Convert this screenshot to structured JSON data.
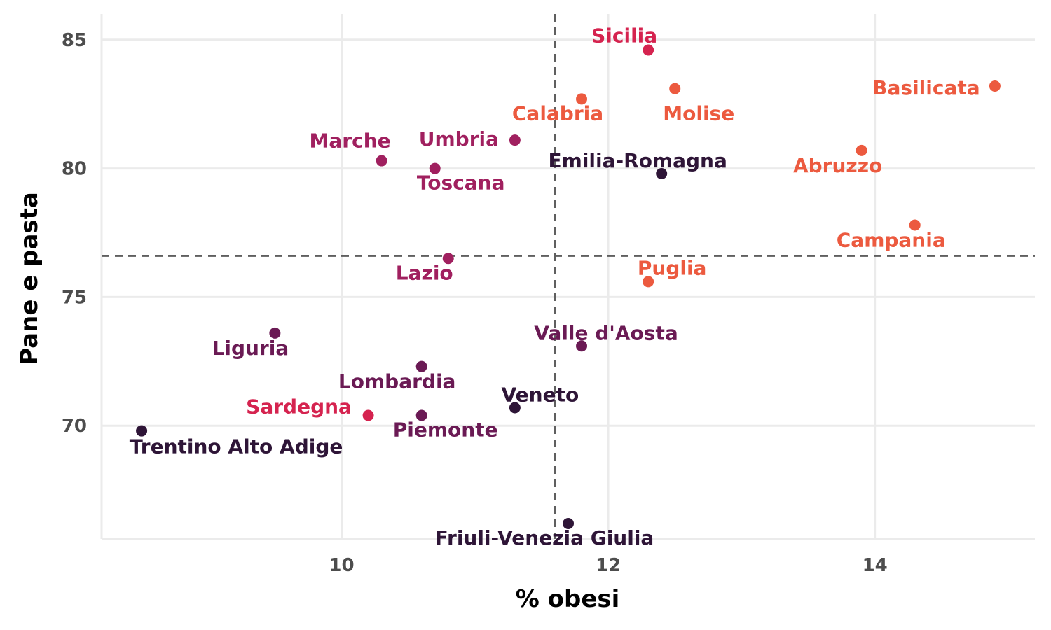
{
  "chart_data": {
    "type": "scatter",
    "xlabel": "% obesi",
    "ylabel": "Pane e pasta",
    "xlim": [
      8.2,
      15.2
    ],
    "ylim": [
      65.6,
      86.0
    ],
    "xticks": [
      10,
      12,
      14
    ],
    "yticks": [
      70,
      75,
      80,
      85
    ],
    "grid": true,
    "reference_lines": {
      "x": 11.6,
      "y": 76.6
    },
    "points": [
      {
        "label": "Sicilia",
        "x": 12.3,
        "y": 84.6,
        "color": "#d5234f"
      },
      {
        "label": "Molise",
        "x": 12.5,
        "y": 83.1,
        "color": "#ec5a3f"
      },
      {
        "label": "Basilicata",
        "x": 14.9,
        "y": 83.2,
        "color": "#ec5a3f"
      },
      {
        "label": "Calabria",
        "x": 11.8,
        "y": 82.7,
        "color": "#ec5a3f"
      },
      {
        "label": "Umbria",
        "x": 11.3,
        "y": 81.1,
        "color": "#a0205f"
      },
      {
        "label": "Marche",
        "x": 10.3,
        "y": 80.3,
        "color": "#a0205f"
      },
      {
        "label": "Toscana",
        "x": 10.7,
        "y": 80.0,
        "color": "#a0205f"
      },
      {
        "label": "Emilia-Romagna",
        "x": 12.4,
        "y": 79.8,
        "color": "#2e1537"
      },
      {
        "label": "Abruzzo",
        "x": 13.9,
        "y": 80.7,
        "color": "#ec5a3f"
      },
      {
        "label": "Campania",
        "x": 14.3,
        "y": 77.8,
        "color": "#ec5a3f"
      },
      {
        "label": "Lazio",
        "x": 10.8,
        "y": 76.5,
        "color": "#a0205f"
      },
      {
        "label": "Puglia",
        "x": 12.3,
        "y": 75.6,
        "color": "#ec5a3f"
      },
      {
        "label": "Liguria",
        "x": 9.5,
        "y": 73.6,
        "color": "#6a1a54"
      },
      {
        "label": "Valle d'Aosta",
        "x": 11.8,
        "y": 73.1,
        "color": "#6a1a54"
      },
      {
        "label": "Lombardia",
        "x": 10.6,
        "y": 72.3,
        "color": "#6a1a54"
      },
      {
        "label": "Veneto",
        "x": 11.3,
        "y": 70.7,
        "color": "#2e1537"
      },
      {
        "label": "Sardegna",
        "x": 10.2,
        "y": 70.4,
        "color": "#d5234f"
      },
      {
        "label": "Piemonte",
        "x": 10.6,
        "y": 70.4,
        "color": "#6a1a54"
      },
      {
        "label": "Trentino Alto Adige",
        "x": 8.5,
        "y": 69.8,
        "color": "#2e1537"
      },
      {
        "label": "Friuli-Venezia Giulia",
        "x": 11.7,
        "y": 66.2,
        "color": "#2e1537"
      }
    ]
  }
}
